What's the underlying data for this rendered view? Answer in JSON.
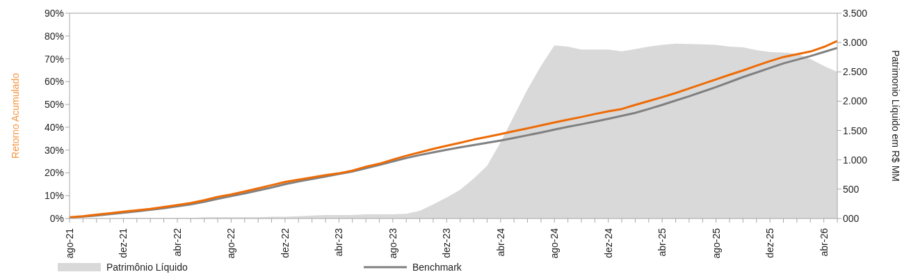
{
  "chart_data": {
    "type": "line",
    "ylabel": "Retorno Acumulado",
    "y2label": "Patrimonio Líquido em R$ MM",
    "categories": [
      "ago-21",
      null,
      null,
      null,
      "dez-21",
      null,
      null,
      null,
      "abr-22",
      null,
      null,
      null,
      "ago-22",
      null,
      null,
      null,
      "dez-22",
      null,
      null,
      null,
      "abr-23",
      null,
      null,
      null,
      "ago-23",
      null,
      null,
      null,
      "dez-23",
      null,
      null,
      null,
      "abr-24",
      null,
      null,
      null,
      "ago-24",
      null,
      null,
      null,
      "dez-24",
      null,
      null,
      null,
      "abr-25",
      null,
      null,
      null,
      "ago-25",
      null,
      null,
      null,
      "dez-25",
      null,
      null,
      null,
      "abr-26",
      null
    ],
    "series": [
      {
        "name": "Patrimônio Líquido",
        "type": "area",
        "axis": "y2",
        "color": "#d9d9d9",
        "values": [
          0,
          0,
          0,
          0,
          10,
          10,
          10,
          10,
          10,
          10,
          20,
          20,
          20,
          20,
          20,
          30,
          30,
          40,
          50,
          60,
          60,
          60,
          70,
          70,
          70,
          80,
          130,
          240,
          360,
          490,
          680,
          900,
          1300,
          1750,
          2200,
          2600,
          2950,
          2930,
          2880,
          2880,
          2880,
          2850,
          2890,
          2930,
          2960,
          2980,
          2975,
          2970,
          2960,
          2930,
          2920,
          2870,
          2840,
          2830,
          2810,
          2720,
          2600,
          2500
        ]
      },
      {
        "name": "Benchmark",
        "color": "#808080",
        "values": [
          0.3,
          0.8,
          1.3,
          1.9,
          2.5,
          3.1,
          3.8,
          4.5,
          5.3,
          6.2,
          7.3,
          8.6,
          9.8,
          11.0,
          12.3,
          13.6,
          15.0,
          16.2,
          17.3,
          18.4,
          19.5,
          20.6,
          22.0,
          23.5,
          25.0,
          26.5,
          27.8,
          29.0,
          30.1,
          31.2,
          32.2,
          33.2,
          34.2,
          35.3,
          36.5,
          37.7,
          39.0,
          40.2,
          41.3,
          42.5,
          43.7,
          45.0,
          46.3,
          48.0,
          49.8,
          51.7,
          53.6,
          55.6,
          57.6,
          59.8,
          62.0,
          64.0,
          66.0,
          68.0,
          69.6,
          71.2,
          73.0,
          74.8
        ]
      },
      {
        "color": "#ed6b06",
        "values": [
          0.5,
          1.0,
          1.7,
          2.3,
          3.0,
          3.6,
          4.2,
          5.0,
          5.9,
          6.8,
          8.0,
          9.5,
          10.5,
          11.8,
          13.2,
          14.6,
          16.0,
          17.0,
          18.0,
          19.0,
          19.8,
          21.0,
          22.7,
          24.0,
          25.8,
          27.5,
          29.0,
          30.5,
          31.9,
          33.2,
          34.6,
          35.8,
          37.0,
          38.3,
          39.5,
          40.8,
          42.1,
          43.3,
          44.5,
          45.8,
          47.0,
          48.0,
          49.8,
          51.5,
          53.2,
          55.0,
          57.0,
          59.0,
          61.0,
          63.0,
          64.9,
          67.0,
          69.0,
          70.8,
          72.0,
          73.2,
          75.2,
          77.8
        ]
      }
    ],
    "ylim": [
      0,
      90
    ],
    "yticks": [
      {
        "value": 0,
        "label": "0%"
      },
      {
        "value": 10,
        "label": "10%"
      },
      {
        "value": 20,
        "label": "20%"
      },
      {
        "value": 30,
        "label": "30%"
      },
      {
        "value": 40,
        "label": "40%"
      },
      {
        "value": 50,
        "label": "50%"
      },
      {
        "value": 60,
        "label": "60%"
      },
      {
        "value": 70,
        "label": "70%"
      },
      {
        "value": 80,
        "label": "80%"
      },
      {
        "value": 90,
        "label": "90%"
      }
    ],
    "y2lim": [
      0,
      3500
    ],
    "y2ticks": [
      {
        "value": 0,
        "label": "000"
      },
      {
        "value": 500,
        "label": "500"
      },
      {
        "value": 1000,
        "label": "1.000"
      },
      {
        "value": 1500,
        "label": "1.500"
      },
      {
        "value": 2000,
        "label": "2.000"
      },
      {
        "value": 2500,
        "label": "2.500"
      },
      {
        "value": 3000,
        "label": "3.000"
      },
      {
        "value": 3500,
        "label": "3.500"
      }
    ],
    "grid": false,
    "legend": "bottom",
    "marker": "none",
    "line_style": "solid"
  }
}
